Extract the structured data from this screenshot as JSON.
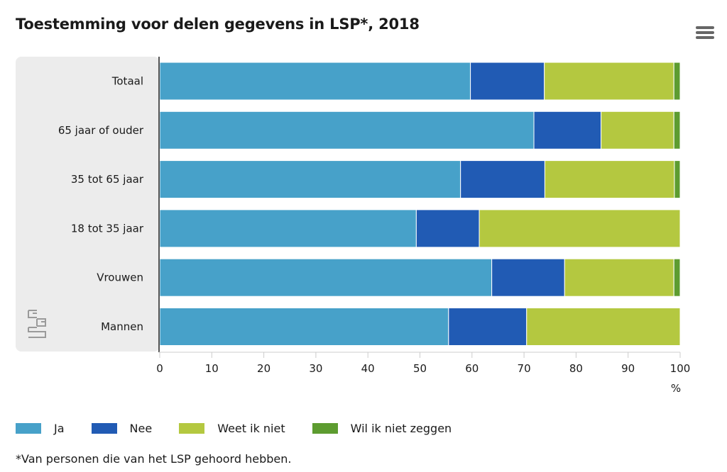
{
  "title": "Toestemming voor delen gegevens in LSP*, 2018",
  "menu_icon": "hamburger-menu-icon",
  "logo_icon": "cbs-logo-icon",
  "footnote": "*Van personen die van het LSP gehoord hebben.",
  "colors": {
    "Ja": "#47a1c9",
    "Nee": "#215bb4",
    "Weet ik niet": "#b4c840",
    "Wil ik niet zeggen": "#5d9c30",
    "panel": "#ececec"
  },
  "chart_data": {
    "type": "bar",
    "orientation": "horizontal",
    "stacked": true,
    "title": "Toestemming voor delen gegevens in LSP*, 2018",
    "xlabel": "%",
    "xlim": [
      0,
      100
    ],
    "xticks": [
      "0",
      "10",
      "20",
      "30",
      "40",
      "50",
      "60",
      "70",
      "80",
      "90",
      "100"
    ],
    "categories": [
      "Totaal",
      "65 jaar of ouder",
      "35 tot 65 jaar",
      "18 tot 35 jaar",
      "Vrouwen",
      "Mannen"
    ],
    "series": [
      {
        "name": "Ja",
        "values": [
          59.7,
          71.9,
          57.8,
          49.3,
          63.8,
          55.5
        ]
      },
      {
        "name": "Nee",
        "values": [
          14.2,
          12.9,
          16.2,
          12.1,
          14.0,
          15.0
        ]
      },
      {
        "name": "Weet ik niet",
        "values": [
          24.9,
          14.0,
          24.9,
          38.6,
          21.0,
          29.5
        ]
      },
      {
        "name": "Wil ik niet zeggen",
        "values": [
          1.2,
          1.2,
          1.1,
          0.0,
          1.2,
          0.0
        ]
      }
    ],
    "legend_position": "bottom",
    "grid": false
  }
}
